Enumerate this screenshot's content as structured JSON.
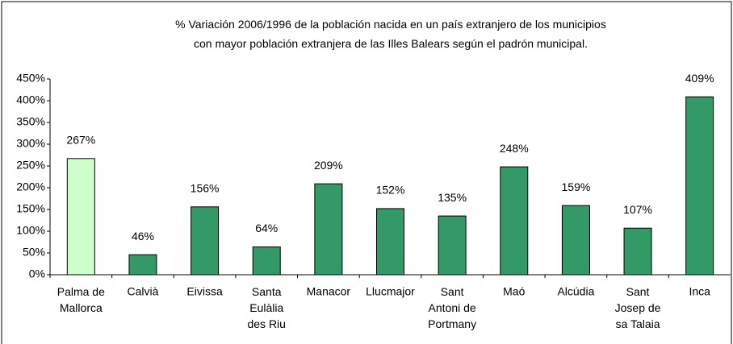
{
  "chart_data": {
    "type": "bar",
    "title": "% Variación 2006/1996 de la población nacida en un país extranjero de los municipios\ncon mayor población extranjera de las Illes Balears según el padrón municipal.",
    "categories": [
      "Palma de\nMallorca",
      "Calvià",
      "Eivissa",
      "Santa\nEulàlia\ndes Riu",
      "Manacor",
      "Llucmajor",
      "Sant\nAntoni de\nPortmany",
      "Maó",
      "Alcúdia",
      "Sant\nJosep de\nsa Talaia",
      "Inca"
    ],
    "values": [
      267,
      46,
      156,
      64,
      209,
      152,
      135,
      248,
      159,
      107,
      409
    ],
    "value_labels": [
      "267%",
      "46%",
      "156%",
      "64%",
      "209%",
      "152%",
      "135%",
      "248%",
      "159%",
      "107%",
      "409%"
    ],
    "colors": [
      "#ccffcc",
      "#339966",
      "#339966",
      "#339966",
      "#339966",
      "#339966",
      "#339966",
      "#339966",
      "#339966",
      "#339966",
      "#339966"
    ],
    "ylim": [
      0,
      450
    ],
    "yticks": [
      {
        "value": 0,
        "label": "0%"
      },
      {
        "value": 50,
        "label": "50%"
      },
      {
        "value": 100,
        "label": "100%"
      },
      {
        "value": 150,
        "label": "150%"
      },
      {
        "value": 200,
        "label": "200%"
      },
      {
        "value": 250,
        "label": "250%"
      },
      {
        "value": 300,
        "label": "300%"
      },
      {
        "value": 350,
        "label": "350%"
      },
      {
        "value": 400,
        "label": "400%"
      },
      {
        "value": 450,
        "label": "450%"
      }
    ],
    "grid": false
  }
}
